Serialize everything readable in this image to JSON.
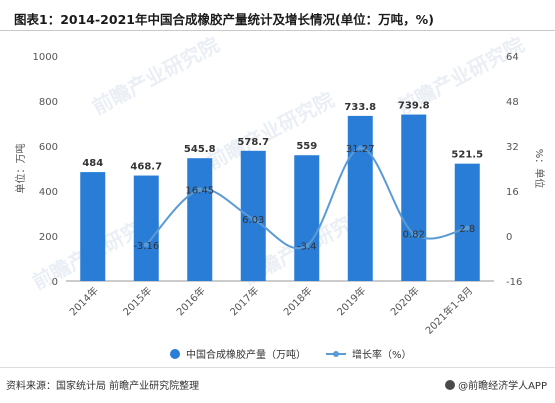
{
  "page": {
    "title": "图表1：2014-2021年中国合成橡胶产量统计及增长情况(单位：万吨，%)",
    "source": "资料来源：国家统计局 前瞻产业研究院整理",
    "brand": "@前瞻经济学人APP",
    "watermark": "前瞻产业研究院"
  },
  "chart_data": {
    "type": "bar",
    "categories": [
      "2014年",
      "2015年",
      "2016年",
      "2017年",
      "2018年",
      "2019年",
      "2020年",
      "2021年1-8月"
    ],
    "series": [
      {
        "name": "中国合成橡胶产量（万吨）",
        "type": "bar",
        "axis": "left",
        "color": "#2a7dd6",
        "values": [
          484,
          468.7,
          545.8,
          578.7,
          559,
          733.8,
          739.8,
          521.5
        ]
      },
      {
        "name": "增长率（%）",
        "type": "line",
        "axis": "right",
        "color": "#5b9bd5",
        "values": [
          null,
          -3.16,
          16.45,
          6.03,
          -3.4,
          31.27,
          0.82,
          2.8
        ]
      }
    ],
    "bar_labels": [
      "484",
      "468.7",
      "545.8",
      "578.7",
      "559",
      "733.8",
      "739.8",
      "521.5"
    ],
    "line_labels": [
      "",
      "-3.16",
      "16.45",
      "6.03",
      "-3.4",
      "31.27",
      "0.82",
      "2.8"
    ],
    "ylabel_left": "单位：万吨",
    "ylabel_right": "%：单位",
    "ylim_left": [
      0,
      1000
    ],
    "ylim_right": [
      -16,
      64
    ],
    "yticks_left": [
      "0",
      "200",
      "400",
      "600",
      "800",
      "1000"
    ],
    "yticks_right": [
      "-16",
      "0",
      "16",
      "32",
      "48",
      "64"
    ],
    "legend_position": "bottom",
    "grid": false
  }
}
